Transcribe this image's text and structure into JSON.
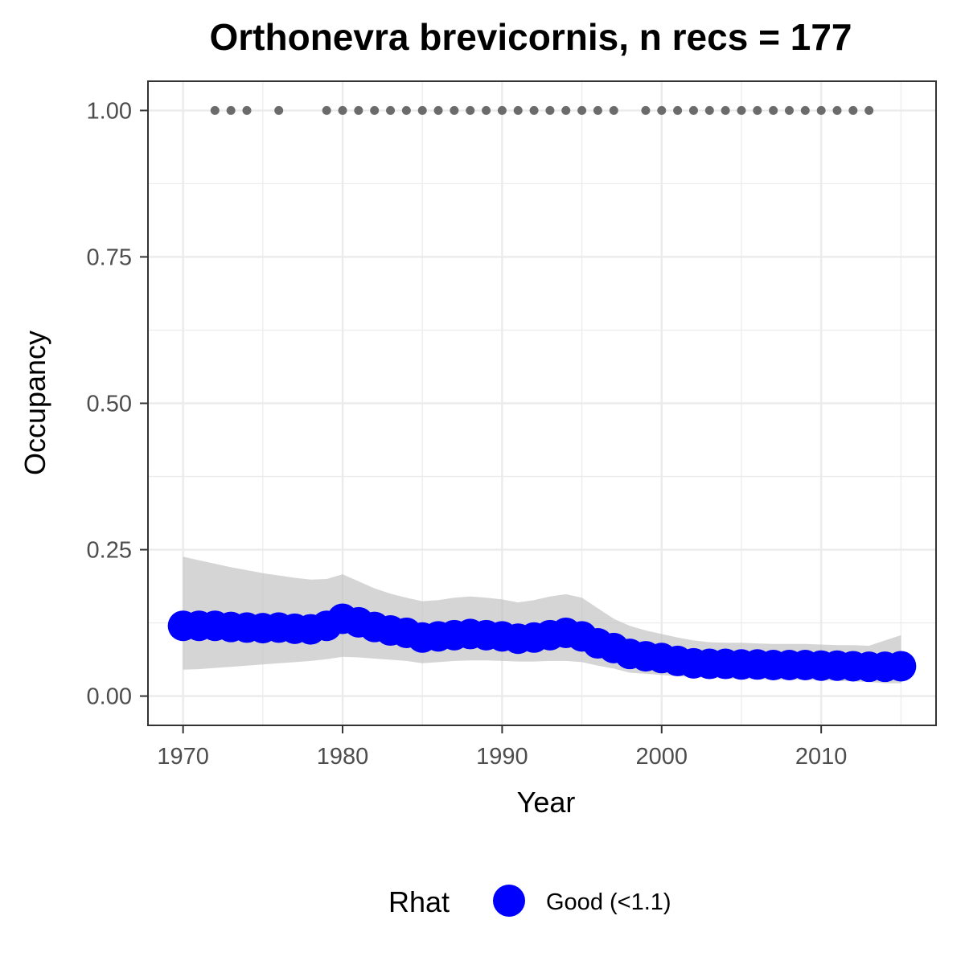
{
  "chart_data": {
    "type": "line",
    "title": "Orthonevra brevicornis, n recs = 177",
    "xlabel": "Year",
    "ylabel": "Occupancy",
    "xlim": [
      1967.8,
      2017.2
    ],
    "ylim": [
      -0.05,
      1.05
    ],
    "x_ticks": [
      1970,
      1980,
      1990,
      2000,
      2010
    ],
    "x_tick_labels": [
      "1970",
      "1980",
      "1990",
      "2000",
      "2010"
    ],
    "y_ticks": [
      0,
      0.25,
      0.5,
      0.75,
      1.0
    ],
    "y_tick_labels": [
      "0.00",
      "0.25",
      "0.50",
      "0.75",
      "1.00"
    ],
    "grid": true,
    "legend": {
      "title": "Rhat",
      "placement": "bottom",
      "entries": [
        {
          "label": "Good (<1.1)",
          "color": "#0000ff"
        }
      ]
    },
    "colors": {
      "estimate": "#0000ff",
      "ribbon": "#bebebe",
      "records": "#6b6b6b",
      "grid": "#ebebeb",
      "panel_border": "#333333"
    },
    "series": [
      {
        "name": "Good (<1.1)",
        "x": [
          1970,
          1971,
          1972,
          1973,
          1974,
          1975,
          1976,
          1977,
          1978,
          1979,
          1980,
          1981,
          1982,
          1983,
          1984,
          1985,
          1986,
          1987,
          1988,
          1989,
          1990,
          1991,
          1992,
          1993,
          1994,
          1995,
          1996,
          1997,
          1998,
          1999,
          2000,
          2001,
          2002,
          2003,
          2004,
          2005,
          2006,
          2007,
          2008,
          2009,
          2010,
          2011,
          2012,
          2013,
          2014,
          2015
        ],
        "y": [
          0.12,
          0.12,
          0.12,
          0.118,
          0.117,
          0.116,
          0.117,
          0.115,
          0.114,
          0.12,
          0.132,
          0.126,
          0.118,
          0.112,
          0.108,
          0.1,
          0.102,
          0.104,
          0.106,
          0.104,
          0.102,
          0.098,
          0.1,
          0.104,
          0.108,
          0.102,
          0.09,
          0.082,
          0.072,
          0.068,
          0.065,
          0.06,
          0.056,
          0.055,
          0.055,
          0.054,
          0.054,
          0.053,
          0.053,
          0.053,
          0.052,
          0.052,
          0.051,
          0.05,
          0.05,
          0.051
        ],
        "lower": [
          0.045,
          0.046,
          0.048,
          0.05,
          0.052,
          0.054,
          0.056,
          0.058,
          0.06,
          0.063,
          0.067,
          0.066,
          0.064,
          0.062,
          0.06,
          0.056,
          0.058,
          0.06,
          0.061,
          0.061,
          0.06,
          0.059,
          0.059,
          0.06,
          0.06,
          0.058,
          0.052,
          0.047,
          0.04,
          0.038,
          0.036,
          0.034,
          0.032,
          0.031,
          0.03,
          0.029,
          0.029,
          0.028,
          0.028,
          0.028,
          0.027,
          0.026,
          0.025,
          0.024,
          0.022,
          0.022
        ],
        "upper": [
          0.238,
          0.232,
          0.226,
          0.22,
          0.215,
          0.21,
          0.206,
          0.202,
          0.199,
          0.2,
          0.208,
          0.196,
          0.184,
          0.175,
          0.168,
          0.162,
          0.164,
          0.168,
          0.17,
          0.168,
          0.165,
          0.16,
          0.164,
          0.17,
          0.174,
          0.168,
          0.15,
          0.132,
          0.12,
          0.112,
          0.106,
          0.1,
          0.095,
          0.092,
          0.091,
          0.091,
          0.09,
          0.089,
          0.089,
          0.089,
          0.088,
          0.087,
          0.087,
          0.086,
          0.095,
          0.104
        ]
      },
      {
        "name": "",
        "type": "scatter",
        "x": [
          1972,
          1973,
          1974,
          1976,
          1979,
          1980,
          1981,
          1982,
          1983,
          1984,
          1985,
          1986,
          1987,
          1988,
          1989,
          1990,
          1991,
          1992,
          1993,
          1994,
          1995,
          1996,
          1997,
          1999,
          2000,
          2001,
          2002,
          2003,
          2004,
          2005,
          2006,
          2007,
          2008,
          2009,
          2010,
          2011,
          2012,
          2013
        ],
        "y": [
          1,
          1,
          1,
          1,
          1,
          1,
          1,
          1,
          1,
          1,
          1,
          1,
          1,
          1,
          1,
          1,
          1,
          1,
          1,
          1,
          1,
          1,
          1,
          1,
          1,
          1,
          1,
          1,
          1,
          1,
          1,
          1,
          1,
          1,
          1,
          1,
          1,
          1
        ]
      }
    ]
  }
}
